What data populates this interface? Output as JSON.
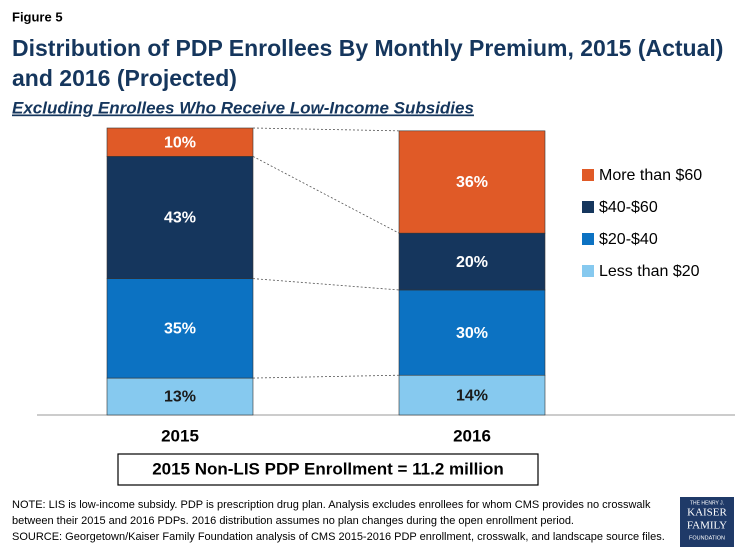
{
  "chart_data": {
    "type": "stacked_bar",
    "figure_label": "Figure 5",
    "title": [
      "Distribution of PDP Enrollees By Monthly Premium, 2015 (Actual)",
      "and 2016 (Projected)"
    ],
    "subtitle": "Excluding Enrollees Who Receive Low-Income Subsidies",
    "categories": [
      "2015",
      "2016"
    ],
    "series": [
      {
        "name": "Less than $20",
        "color": "#86c9ef",
        "label_color": "#1a1a1a",
        "values": [
          13,
          14
        ],
        "value_labels": [
          "13%",
          "14%"
        ]
      },
      {
        "name": "$20-$40",
        "color": "#0c72c2",
        "label_color": "#ffffff",
        "values": [
          35,
          30
        ],
        "value_labels": [
          "35%",
          "30%"
        ]
      },
      {
        "name": "$40-$60",
        "color": "#15365d",
        "label_color": "#ffffff",
        "values": [
          43,
          20
        ],
        "value_labels": [
          "43%",
          "20%"
        ]
      },
      {
        "name": "More than $60",
        "color": "#e05a27",
        "label_color": "#ffffff",
        "values": [
          10,
          36
        ],
        "value_labels": [
          "10%",
          "36%"
        ]
      }
    ],
    "annotation": "2015 Non-LIS PDP Enrollment = 11.2 million",
    "notes": [
      "NOTE: LIS is low-income subsidy. PDP is prescription drug plan. Analysis excludes enrollees for whom CMS provides no crosswalk",
      "between their 2015 and 2016 PDPs. 2016 distribution assumes no plan changes during the open enrollment period.",
      "SOURCE: Georgetown/Kaiser Family Foundation analysis of CMS 2015-2016 PDP enrollment, crosswalk, and landscape source files."
    ],
    "logo": [
      "THE HENRY J.",
      "KAISER",
      "FAMILY",
      "FOUNDATION"
    ]
  }
}
